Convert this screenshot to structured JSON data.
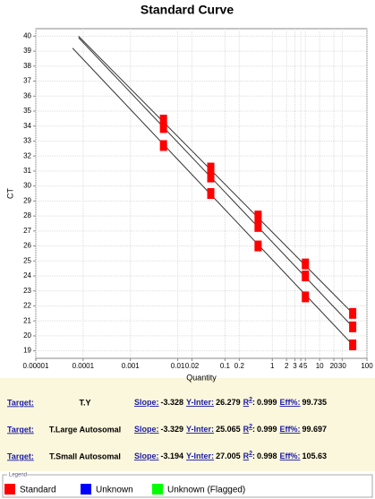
{
  "chart_data": {
    "type": "scatter",
    "title": "Standard Curve",
    "x_label": "Quantity",
    "y_label": "CT",
    "log_x": true,
    "grid": true,
    "xlim": [
      1e-05,
      100
    ],
    "xticks": [
      1e-05,
      0.0001,
      0.001,
      0.01,
      0.02,
      0.1,
      0.2,
      1,
      2,
      3,
      4,
      5,
      10,
      20,
      30,
      100
    ],
    "ylim": [
      18.5,
      40.5
    ],
    "yticks": [
      19,
      20,
      21,
      22,
      23,
      24,
      25,
      26,
      27,
      28,
      29,
      30,
      31,
      32,
      33,
      34,
      35,
      36,
      37,
      38,
      39,
      40
    ],
    "line_color": "#333333",
    "series": [
      {
        "name": "T.Y",
        "color": "#ff0000",
        "x": [
          0.005,
          0.05,
          0.5,
          5,
          50
        ],
        "values": [
          33.9,
          30.6,
          27.3,
          24.0,
          20.6
        ],
        "line_x": [
          8e-05,
          50
        ],
        "line_values": [
          39.9,
          20.6
        ]
      },
      {
        "name": "T.Large Autosomal",
        "color": "#ff0000",
        "x": [
          0.005,
          0.05,
          0.5,
          5,
          50
        ],
        "values": [
          32.7,
          29.5,
          26.0,
          22.6,
          19.4
        ],
        "line_x": [
          6e-05,
          50
        ],
        "line_values": [
          39.2,
          19.4
        ]
      },
      {
        "name": "T.Small Autosomal",
        "color": "#ff0000",
        "x": [
          0.005,
          0.05,
          0.5,
          5,
          50
        ],
        "values": [
          34.4,
          31.2,
          28.0,
          24.8,
          21.5
        ],
        "line_x": [
          8e-05,
          50
        ],
        "line_values": [
          40.0,
          21.5
        ]
      }
    ],
    "stats": [
      {
        "slope": -3.328,
        "y_inter": 26.279,
        "r2": 0.999,
        "eff": 99.735
      },
      {
        "slope": -3.329,
        "y_inter": 25.065,
        "r2": 0.999,
        "eff": 99.697
      },
      {
        "slope": -3.194,
        "y_inter": 27.005,
        "r2": 0.998,
        "eff": 105.63
      }
    ],
    "stat_labels": {
      "target": "Target:",
      "slope": "Slope:",
      "y_inter": "Y-Inter:",
      "r": "R",
      "r_sup": "2",
      "r_colon": ":",
      "eff": "Eff%:"
    },
    "legend_title": "Legend",
    "legend": [
      {
        "name": "Standard",
        "color": "#ff0000"
      },
      {
        "name": "Unknown",
        "color": "#0000ff"
      },
      {
        "name": "Unknown (Flagged)",
        "color": "#00ff00"
      }
    ]
  }
}
